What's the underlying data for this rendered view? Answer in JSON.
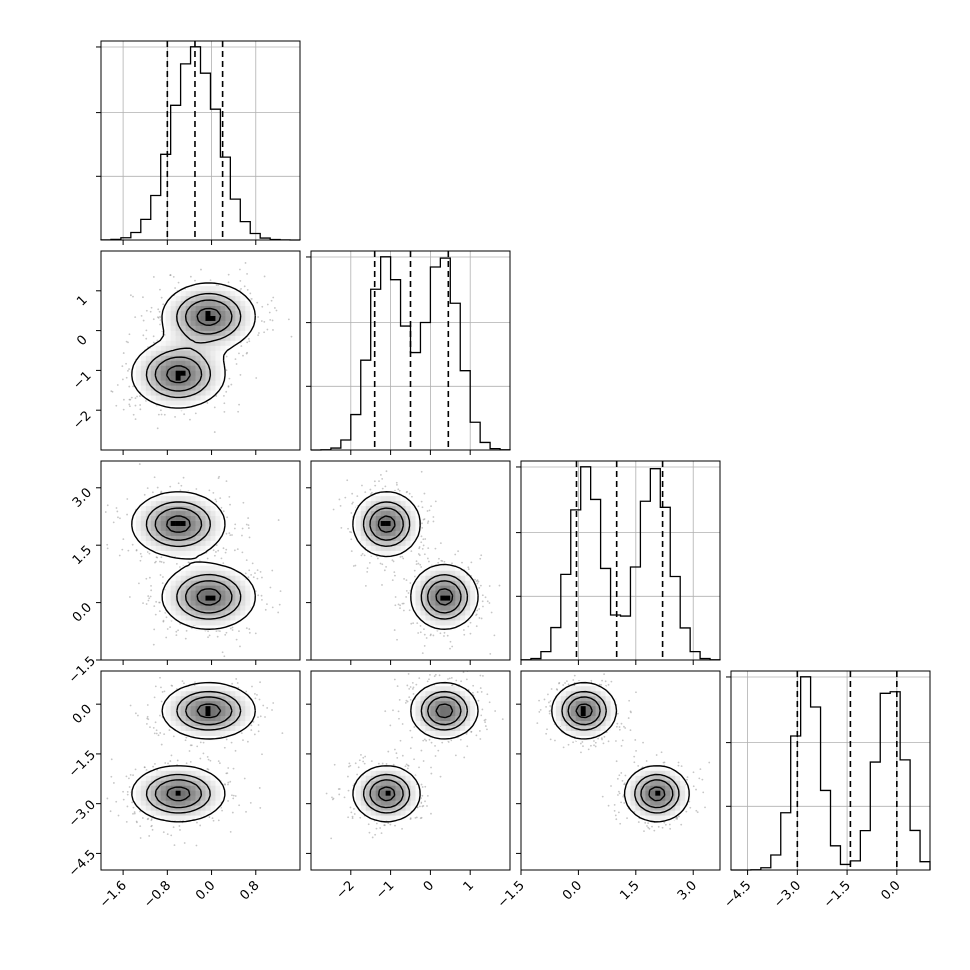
{
  "chart_data": {
    "type": "corner",
    "panel_layout": "lower-triangle 4x4",
    "style": {
      "histogram_color": "#000000",
      "quantile_line_color": "#000000",
      "contour_color": "#000000",
      "density_fill": "grayscale",
      "scatter_point_color": "#808080",
      "grid": true,
      "grid_color": "#b0b0b0"
    },
    "parameters": [
      {
        "index": 0,
        "range": [
          -2.0,
          1.6
        ],
        "ticks": [
          -1.6,
          -0.8,
          0.0,
          0.8
        ],
        "tick_labels": [
          "−1.6",
          "−0.8",
          "0.0",
          "0.8"
        ],
        "quantiles": [
          -0.8,
          -0.3,
          0.2
        ],
        "components": [
          {
            "mean": -0.3,
            "sd": 0.42,
            "weight": 1.0
          }
        ]
      },
      {
        "index": 1,
        "range": [
          -3.0,
          2.0
        ],
        "ticks": [
          -2,
          -1,
          0,
          1
        ],
        "tick_labels": [
          "−2",
          "−1",
          "0",
          "1"
        ],
        "quantiles": [
          -1.4,
          -0.5,
          0.45
        ],
        "components": [
          {
            "mean": -1.1,
            "sd": 0.42,
            "weight": 0.5
          },
          {
            "mean": 0.3,
            "sd": 0.42,
            "weight": 0.5
          }
        ]
      },
      {
        "index": 2,
        "range": [
          -1.5,
          3.7
        ],
        "ticks": [
          -1.5,
          0.0,
          1.5,
          3.0
        ],
        "tick_labels": [
          "−1.5",
          "0.0",
          "1.5",
          "3.0"
        ],
        "quantiles": [
          -0.05,
          1.0,
          2.2
        ],
        "components": [
          {
            "mean": 0.2,
            "sd": 0.42,
            "weight": 0.5
          },
          {
            "mean": 2.0,
            "sd": 0.42,
            "weight": 0.5
          }
        ]
      },
      {
        "index": 3,
        "range": [
          -5.0,
          1.0
        ],
        "ticks": [
          -4.5,
          -3.0,
          -1.5,
          0.0
        ],
        "tick_labels": [
          "−4.5",
          "−3.0",
          "−1.5",
          "0.0"
        ],
        "quantiles": [
          -3.0,
          -1.4,
          0.0
        ],
        "components": [
          {
            "mean": -2.7,
            "sd": 0.42,
            "weight": 0.5
          },
          {
            "mean": -0.2,
            "sd": 0.42,
            "weight": 0.5
          }
        ]
      }
    ],
    "clusters": [
      {
        "means": [
          -0.6,
          -1.1,
          2.05,
          -2.7
        ],
        "weight": 0.5
      },
      {
        "means": [
          -0.05,
          0.35,
          0.15,
          -0.2
        ],
        "weight": 0.5
      }
    ],
    "cluster_sd": 0.42
  }
}
